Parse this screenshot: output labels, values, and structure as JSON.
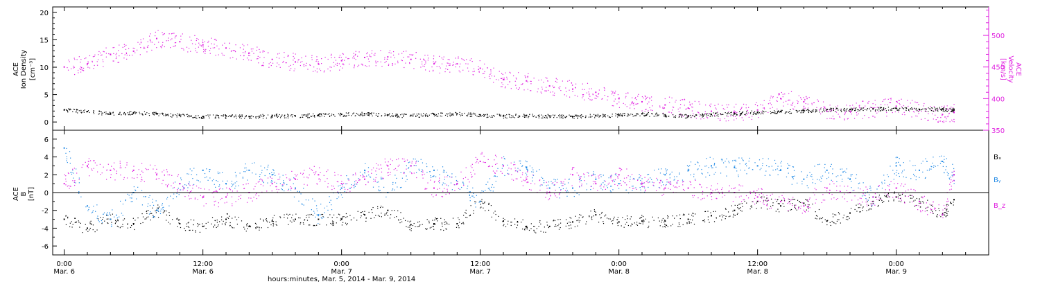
{
  "colors": {
    "black": "#000000",
    "magenta": "#e020e0",
    "blue": "#1e88e5"
  },
  "chart_data": [
    {
      "type": "scatter",
      "panel": "top",
      "ylabel_left": [
        "ACE",
        "Ion Density",
        "[cm⁻³]"
      ],
      "ylabel_right": [
        "ACE",
        "Velocity",
        "[km/s]"
      ],
      "ylim_left": [
        -1.5,
        21
      ],
      "left_ticks": [
        "0",
        "5",
        "10",
        "15",
        "20"
      ],
      "ylim_right": [
        350,
        545
      ],
      "right_ticks": [
        "350",
        "400",
        "450",
        "500"
      ],
      "series": [
        {
          "name": "",
          "axis": "left",
          "color": "#000000",
          "x": [
            0,
            2,
            4,
            6,
            8,
            10,
            12,
            14,
            16,
            18,
            20,
            22,
            24,
            26,
            28,
            30,
            32,
            34,
            36,
            38,
            40,
            42,
            44,
            46,
            48,
            50,
            52,
            54,
            56,
            58,
            60,
            62,
            64,
            66,
            68,
            70,
            72,
            74,
            76,
            77
          ],
          "y": [
            2.2,
            1.9,
            1.6,
            1.7,
            1.5,
            1.2,
            1.0,
            1.1,
            1.0,
            1.2,
            1.1,
            1.3,
            1.4,
            1.5,
            1.3,
            1.2,
            1.4,
            1.5,
            1.3,
            1.1,
            1.2,
            1.1,
            1.0,
            1.2,
            1.3,
            1.5,
            1.3,
            1.1,
            1.4,
            1.6,
            1.8,
            1.9,
            2.1,
            2.3,
            2.3,
            2.4,
            2.5,
            2.3,
            2.4,
            2.2
          ]
        },
        {
          "name": "",
          "axis": "right",
          "color": "#e020e0",
          "x": [
            0,
            2,
            4,
            6,
            8,
            10,
            12,
            14,
            16,
            18,
            20,
            22,
            24,
            26,
            28,
            30,
            32,
            34,
            36,
            38,
            40,
            42,
            44,
            46,
            48,
            50,
            52,
            54,
            56,
            58,
            60,
            62,
            64,
            66,
            68,
            70,
            72,
            74,
            76,
            77
          ],
          "y": [
            450,
            455,
            470,
            475,
            495,
            490,
            485,
            480,
            472,
            462,
            458,
            455,
            460,
            465,
            466,
            462,
            455,
            455,
            448,
            430,
            428,
            420,
            415,
            410,
            400,
            395,
            390,
            385,
            380,
            378,
            382,
            400,
            395,
            380,
            380,
            385,
            388,
            382,
            375,
            378
          ]
        }
      ]
    },
    {
      "type": "scatter",
      "panel": "bottom",
      "ylabel": [
        "ACE",
        "B",
        "[nT]"
      ],
      "ylim": [
        -7,
        7
      ],
      "ticks": [
        "-6",
        "-4",
        "-2",
        "0",
        "2",
        "4",
        "6"
      ],
      "legend": [
        "Bₓ",
        "Bᵧ",
        "B_z"
      ],
      "series": [
        {
          "name": "Bₓ",
          "color": "#000000",
          "x": [
            0,
            2,
            4,
            6,
            8,
            10,
            12,
            14,
            16,
            18,
            20,
            22,
            24,
            26,
            28,
            30,
            32,
            34,
            36,
            38,
            40,
            42,
            44,
            46,
            48,
            50,
            52,
            54,
            56,
            58,
            60,
            62,
            64,
            66,
            68,
            70,
            72,
            74,
            76,
            77
          ],
          "y": [
            -3,
            -4,
            -3,
            -3.5,
            -2,
            -3.5,
            -3.8,
            -3,
            -3.8,
            -3.2,
            -3,
            -3,
            -3,
            -2.5,
            -2,
            -3.6,
            -3.5,
            -3.5,
            -1,
            -3.2,
            -3.8,
            -3.8,
            -3.3,
            -2.5,
            -3.3,
            -3.2,
            -3.2,
            -3,
            -2.6,
            -2,
            -1,
            -1.5,
            -1.2,
            -3.2,
            -2.3,
            -1,
            -0.5,
            -1,
            -2.5,
            -0.8
          ]
        },
        {
          "name": "Bᵧ",
          "color": "#1e88e5",
          "x": [
            0,
            2,
            4,
            6,
            8,
            10,
            12,
            14,
            16,
            18,
            20,
            22,
            24,
            26,
            28,
            30,
            32,
            34,
            36,
            38,
            40,
            42,
            44,
            46,
            48,
            50,
            52,
            54,
            56,
            58,
            60,
            62,
            64,
            66,
            68,
            70,
            72,
            74,
            76,
            77
          ],
          "y": [
            5,
            -1.5,
            -3,
            0,
            -2,
            1,
            2.5,
            1,
            2.5,
            2,
            0.5,
            -2.5,
            0.5,
            2.5,
            0,
            3,
            2.5,
            1,
            -1,
            3,
            2.8,
            0.5,
            0.5,
            1.5,
            1,
            1,
            2,
            2.5,
            3,
            2.8,
            3,
            2.5,
            1.5,
            2.5,
            1.5,
            -0.5,
            3,
            2.5,
            3.5,
            2
          ]
        },
        {
          "name": "B_z",
          "color": "#e020e0",
          "x": [
            0,
            2,
            4,
            6,
            8,
            10,
            12,
            14,
            16,
            18,
            20,
            22,
            24,
            26,
            28,
            30,
            32,
            34,
            36,
            38,
            40,
            42,
            44,
            46,
            48,
            50,
            52,
            54,
            56,
            58,
            60,
            62,
            64,
            66,
            68,
            70,
            72,
            74,
            76,
            77
          ],
          "y": [
            1,
            3,
            2.5,
            2.5,
            2,
            1,
            -0.5,
            -0.5,
            0,
            1,
            1.5,
            2,
            1,
            1.5,
            3,
            3,
            0.5,
            1,
            3.5,
            3,
            1.5,
            0,
            2,
            1,
            2,
            1,
            0.5,
            0.5,
            0,
            0,
            -0.5,
            -1,
            -1.5,
            0.5,
            0,
            -0.5,
            0.5,
            -1,
            -2.5,
            2
          ]
        }
      ]
    }
  ],
  "x_axis": {
    "tick_labels": [
      {
        "time": "0:00",
        "date": "Mar. 6"
      },
      {
        "time": "12:00",
        "date": "Mar. 6"
      },
      {
        "time": "0:00",
        "date": "Mar. 7"
      },
      {
        "time": "12:00",
        "date": "Mar. 7"
      },
      {
        "time": "0:00",
        "date": "Mar. 8"
      },
      {
        "time": "12:00",
        "date": "Mar. 8"
      },
      {
        "time": "0:00",
        "date": "Mar. 9"
      }
    ],
    "tick_hours": [
      0,
      12,
      24,
      36,
      48,
      60,
      72
    ],
    "xlim_hours": [
      -1,
      80
    ],
    "xlabel": "hours:minutes, Mar. 5, 2014 - Mar. 9, 2014"
  }
}
